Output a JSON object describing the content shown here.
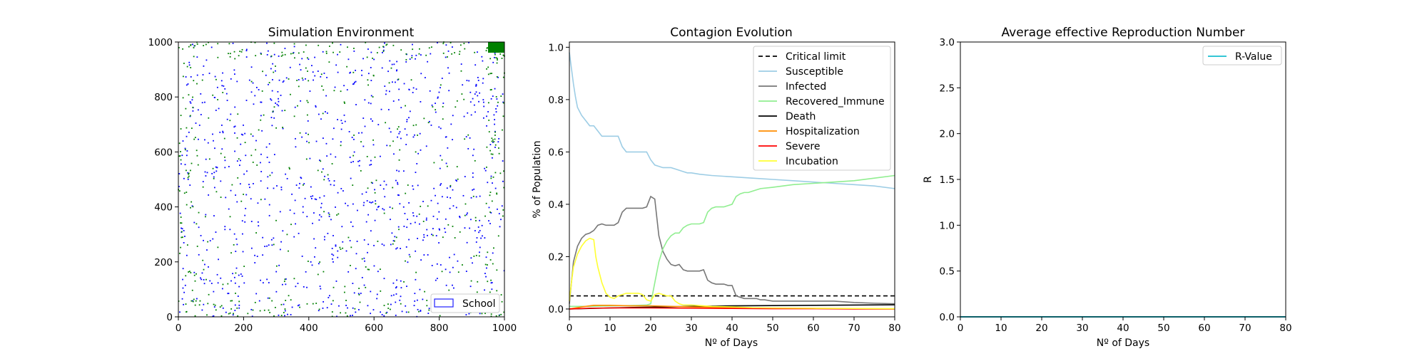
{
  "chart_data": [
    {
      "type": "scatter",
      "title": "Simulation Environment",
      "xlabel": "",
      "ylabel": "",
      "xlim": [
        0,
        1000
      ],
      "ylim": [
        0,
        1000
      ],
      "xticks": [
        0,
        200,
        400,
        600,
        800,
        1000
      ],
      "yticks": [
        0,
        200,
        400,
        600,
        800,
        1000
      ],
      "legend": {
        "position": "bottom-right",
        "entries": [
          {
            "label": "School",
            "marker": "rectangle-outline",
            "color": "#1f1fff"
          }
        ]
      },
      "series": [
        {
          "color": "#0000ff",
          "approx_count": 950
        },
        {
          "color": "#008000",
          "approx_count": 560
        }
      ],
      "school_zone": {
        "x": [
          940,
          1000
        ],
        "y": [
          960,
          1000
        ],
        "color": "#008000"
      }
    },
    {
      "type": "line",
      "title": "Contagion Evolution",
      "xlabel": "Nº of Days",
      "ylabel": "% of Population",
      "xlim": [
        0,
        80
      ],
      "ylim": [
        -0.03,
        1.02
      ],
      "xticks": [
        0,
        10,
        20,
        30,
        40,
        50,
        60,
        70,
        80
      ],
      "yticks": [
        0.0,
        0.2,
        0.4,
        0.6,
        0.8,
        1.0
      ],
      "legend": {
        "position": "top-right"
      },
      "series": [
        {
          "name": "Critical limit",
          "color": "#000000",
          "dash": true,
          "points": [
            [
              0,
              0.05
            ],
            [
              80,
              0.05
            ]
          ]
        },
        {
          "name": "Susceptible",
          "color": "#9dcde5",
          "points": [
            [
              0,
              0.98
            ],
            [
              0.5,
              0.92
            ],
            [
              1,
              0.86
            ],
            [
              1.5,
              0.81
            ],
            [
              2,
              0.77
            ],
            [
              3,
              0.74
            ],
            [
              4,
              0.72
            ],
            [
              5,
              0.7
            ],
            [
              6,
              0.7
            ],
            [
              7,
              0.68
            ],
            [
              8,
              0.66
            ],
            [
              9,
              0.66
            ],
            [
              10,
              0.66
            ],
            [
              11,
              0.66
            ],
            [
              12,
              0.66
            ],
            [
              13,
              0.62
            ],
            [
              14,
              0.6
            ],
            [
              15,
              0.6
            ],
            [
              16,
              0.6
            ],
            [
              17,
              0.6
            ],
            [
              18,
              0.6
            ],
            [
              19,
              0.6
            ],
            [
              20,
              0.57
            ],
            [
              21,
              0.55
            ],
            [
              22,
              0.545
            ],
            [
              23,
              0.54
            ],
            [
              24,
              0.54
            ],
            [
              25,
              0.54
            ],
            [
              26,
              0.535
            ],
            [
              27,
              0.53
            ],
            [
              28,
              0.525
            ],
            [
              29,
              0.52
            ],
            [
              30,
              0.52
            ],
            [
              32,
              0.515
            ],
            [
              35,
              0.51
            ],
            [
              40,
              0.505
            ],
            [
              45,
              0.5
            ],
            [
              50,
              0.495
            ],
            [
              55,
              0.49
            ],
            [
              60,
              0.485
            ],
            [
              65,
              0.48
            ],
            [
              70,
              0.475
            ],
            [
              75,
              0.47
            ],
            [
              80,
              0.46
            ]
          ]
        },
        {
          "name": "Infected",
          "color": "#777777",
          "points": [
            [
              0,
              0.02
            ],
            [
              0.5,
              0.1
            ],
            [
              1,
              0.18
            ],
            [
              2,
              0.24
            ],
            [
              3,
              0.27
            ],
            [
              4,
              0.285
            ],
            [
              5,
              0.29
            ],
            [
              6,
              0.3
            ],
            [
              7,
              0.32
            ],
            [
              8,
              0.325
            ],
            [
              9,
              0.32
            ],
            [
              10,
              0.32
            ],
            [
              11,
              0.32
            ],
            [
              12,
              0.33
            ],
            [
              13,
              0.37
            ],
            [
              14,
              0.385
            ],
            [
              15,
              0.385
            ],
            [
              16,
              0.385
            ],
            [
              17,
              0.385
            ],
            [
              18,
              0.385
            ],
            [
              19,
              0.39
            ],
            [
              20,
              0.43
            ],
            [
              21,
              0.42
            ],
            [
              21.5,
              0.35
            ],
            [
              22,
              0.28
            ],
            [
              23,
              0.22
            ],
            [
              24,
              0.19
            ],
            [
              25,
              0.17
            ],
            [
              26,
              0.165
            ],
            [
              27,
              0.17
            ],
            [
              28,
              0.15
            ],
            [
              29,
              0.145
            ],
            [
              30,
              0.145
            ],
            [
              31,
              0.145
            ],
            [
              32,
              0.145
            ],
            [
              33,
              0.15
            ],
            [
              34,
              0.11
            ],
            [
              35,
              0.1
            ],
            [
              36,
              0.095
            ],
            [
              37,
              0.095
            ],
            [
              38,
              0.095
            ],
            [
              39,
              0.09
            ],
            [
              40,
              0.09
            ],
            [
              41,
              0.05
            ],
            [
              42,
              0.045
            ],
            [
              43,
              0.04
            ],
            [
              44,
              0.04
            ],
            [
              45,
              0.04
            ],
            [
              46,
              0.04
            ],
            [
              47,
              0.035
            ],
            [
              48,
              0.035
            ],
            [
              50,
              0.03
            ],
            [
              55,
              0.03
            ],
            [
              60,
              0.03
            ],
            [
              65,
              0.03
            ],
            [
              70,
              0.025
            ],
            [
              75,
              0.022
            ],
            [
              80,
              0.02
            ]
          ]
        },
        {
          "name": "Recovered_Immune",
          "color": "#90ee90",
          "points": [
            [
              0,
              0.01
            ],
            [
              5,
              0.01
            ],
            [
              10,
              0.012
            ],
            [
              15,
              0.013
            ],
            [
              19,
              0.015
            ],
            [
              20,
              0.02
            ],
            [
              21,
              0.1
            ],
            [
              22,
              0.18
            ],
            [
              23,
              0.23
            ],
            [
              24,
              0.26
            ],
            [
              25,
              0.28
            ],
            [
              26,
              0.29
            ],
            [
              27,
              0.29
            ],
            [
              28,
              0.31
            ],
            [
              29,
              0.32
            ],
            [
              30,
              0.325
            ],
            [
              31,
              0.325
            ],
            [
              32,
              0.325
            ],
            [
              33,
              0.33
            ],
            [
              34,
              0.37
            ],
            [
              35,
              0.385
            ],
            [
              36,
              0.39
            ],
            [
              37,
              0.39
            ],
            [
              38,
              0.39
            ],
            [
              39,
              0.395
            ],
            [
              40,
              0.4
            ],
            [
              41,
              0.43
            ],
            [
              42,
              0.44
            ],
            [
              43,
              0.445
            ],
            [
              44,
              0.445
            ],
            [
              45,
              0.45
            ],
            [
              47,
              0.46
            ],
            [
              50,
              0.465
            ],
            [
              55,
              0.475
            ],
            [
              60,
              0.48
            ],
            [
              65,
              0.485
            ],
            [
              70,
              0.49
            ],
            [
              75,
              0.5
            ],
            [
              80,
              0.51
            ]
          ]
        },
        {
          "name": "Death",
          "color": "#000000",
          "points": [
            [
              0,
              0.0
            ],
            [
              5,
              0.002
            ],
            [
              10,
              0.004
            ],
            [
              20,
              0.007
            ],
            [
              30,
              0.01
            ],
            [
              40,
              0.012
            ],
            [
              50,
              0.013
            ],
            [
              60,
              0.014
            ],
            [
              70,
              0.015
            ],
            [
              80,
              0.016
            ]
          ]
        },
        {
          "name": "Hospitalization",
          "color": "#ff8c00",
          "points": [
            [
              0,
              0.0
            ],
            [
              3,
              0.008
            ],
            [
              6,
              0.014
            ],
            [
              10,
              0.014
            ],
            [
              15,
              0.012
            ],
            [
              20,
              0.012
            ],
            [
              25,
              0.01
            ],
            [
              30,
              0.008
            ],
            [
              40,
              0.005
            ],
            [
              50,
              0.003
            ],
            [
              60,
              0.002
            ],
            [
              70,
              0.001
            ],
            [
              80,
              0.0
            ]
          ]
        },
        {
          "name": "Severe",
          "color": "#ff0000",
          "points": [
            [
              0,
              0.0
            ],
            [
              5,
              0.003
            ],
            [
              10,
              0.004
            ],
            [
              20,
              0.004
            ],
            [
              30,
              0.003
            ],
            [
              40,
              0.002
            ],
            [
              50,
              0.001
            ],
            [
              60,
              0.001
            ],
            [
              70,
              0.0
            ],
            [
              80,
              0.0
            ]
          ]
        },
        {
          "name": "Incubation",
          "color": "#ffff33",
          "points": [
            [
              0,
              0.03
            ],
            [
              0.5,
              0.1
            ],
            [
              1,
              0.16
            ],
            [
              2,
              0.21
            ],
            [
              3,
              0.24
            ],
            [
              4,
              0.26
            ],
            [
              5,
              0.27
            ],
            [
              6,
              0.265
            ],
            [
              6.5,
              0.2
            ],
            [
              7,
              0.16
            ],
            [
              8,
              0.1
            ],
            [
              9,
              0.06
            ],
            [
              10,
              0.045
            ],
            [
              11,
              0.04
            ],
            [
              12,
              0.05
            ],
            [
              13,
              0.055
            ],
            [
              14,
              0.06
            ],
            [
              15,
              0.06
            ],
            [
              16,
              0.06
            ],
            [
              17,
              0.06
            ],
            [
              18,
              0.055
            ],
            [
              19,
              0.035
            ],
            [
              20,
              0.03
            ],
            [
              21,
              0.055
            ],
            [
              22,
              0.06
            ],
            [
              23,
              0.055
            ],
            [
              24,
              0.05
            ],
            [
              25,
              0.05
            ],
            [
              26,
              0.03
            ],
            [
              27,
              0.02
            ],
            [
              28,
              0.015
            ],
            [
              30,
              0.015
            ],
            [
              33,
              0.012
            ],
            [
              35,
              0.01
            ],
            [
              40,
              0.008
            ],
            [
              45,
              0.005
            ],
            [
              50,
              0.004
            ],
            [
              60,
              0.003
            ],
            [
              70,
              0.002
            ],
            [
              80,
              0.001
            ]
          ]
        }
      ]
    },
    {
      "type": "line",
      "title": "Average effective Reproduction Number",
      "xlabel": "Nº of Days",
      "ylabel": "R",
      "xlim": [
        0,
        80
      ],
      "ylim": [
        0,
        3
      ],
      "xticks": [
        0,
        10,
        20,
        30,
        40,
        50,
        60,
        70,
        80
      ],
      "yticks": [
        0.0,
        0.5,
        1.0,
        1.5,
        2.0,
        2.5,
        3.0
      ],
      "legend": {
        "position": "top-right"
      },
      "series": [
        {
          "name": "R-Value",
          "color": "#17becf",
          "points": [
            [
              0,
              0
            ],
            [
              80,
              0
            ]
          ]
        }
      ]
    }
  ]
}
